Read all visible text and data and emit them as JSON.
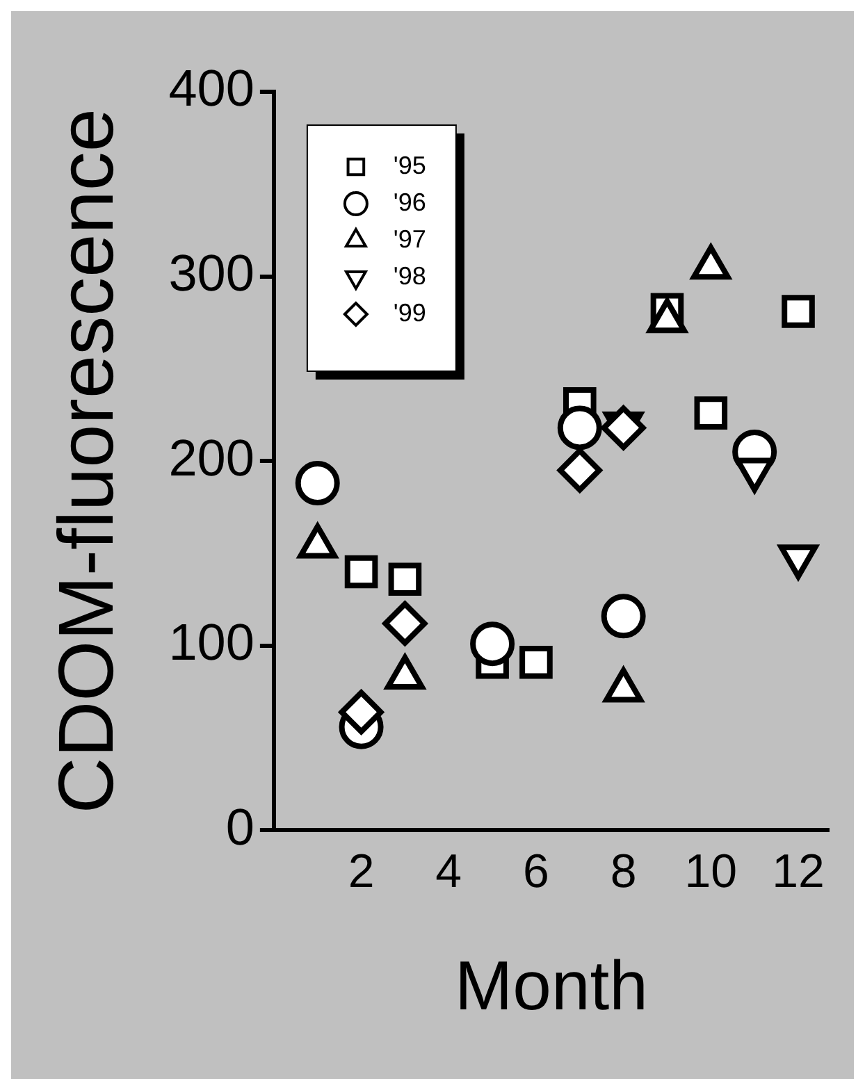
{
  "chart_data": {
    "type": "scatter",
    "xlabel": "Month",
    "ylabel": "CDOM-fluorescence",
    "xlim": [
      0,
      12.7
    ],
    "xticks": [
      2,
      4,
      6,
      8,
      10,
      12
    ],
    "ylim": [
      0,
      400
    ],
    "yticks": [
      0,
      100,
      200,
      300,
      400
    ],
    "grid": false,
    "legend": "top left",
    "series": [
      {
        "name": "'95",
        "color": "#ffffff",
        "marker": "square",
        "x": [
          2,
          3,
          5,
          6,
          7,
          9,
          10,
          12
        ],
        "values": [
          140,
          136,
          91,
          91,
          231,
          282,
          226,
          281
        ]
      },
      {
        "name": "'96",
        "color": "#ffffff",
        "marker": "circle",
        "x": [
          1,
          2,
          5,
          7,
          8,
          11
        ],
        "values": [
          188,
          56,
          101,
          218,
          116,
          205
        ]
      },
      {
        "name": "'97",
        "color": "#ffffff",
        "marker": "triangle",
        "x": [
          1,
          2,
          3,
          8,
          9,
          10
        ],
        "values": [
          154,
          null,
          83,
          76,
          276,
          305
        ]
      },
      {
        "name": "'98",
        "color": "#ffffff",
        "marker": "triangle-down",
        "x": [
          8,
          11,
          12
        ],
        "values": [
          220,
          195,
          148
        ]
      },
      {
        "name": "'99",
        "color": "#ffffff",
        "marker": "diamond",
        "x": [
          2,
          3,
          7,
          8
        ],
        "values": [
          64,
          112,
          195,
          218
        ]
      }
    ]
  }
}
